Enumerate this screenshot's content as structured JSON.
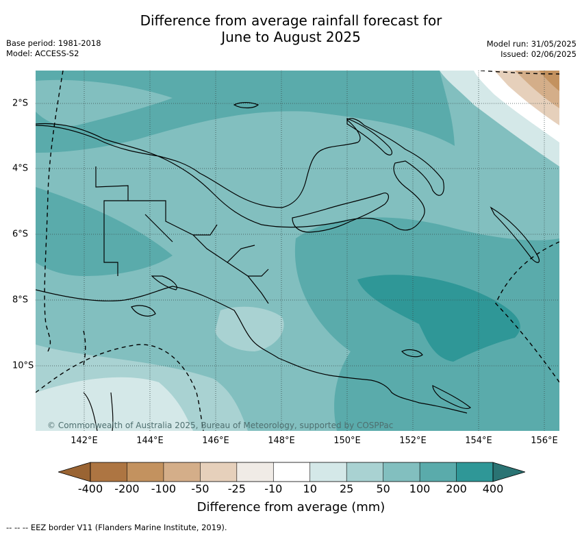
{
  "title_line1": "Difference from average rainfall forecast for",
  "title_line2": "June to August 2025",
  "meta_left": [
    "Base period: 1981-2018",
    "Model: ACCESS-S2"
  ],
  "meta_right": [
    "Model run: 31/05/2025",
    "Issued: 02/06/2025"
  ],
  "copyright": "© Commonwealth of Australia 2025, Bureau of Meteorology, supported by COSPPac",
  "x_ticks": [
    "142°E",
    "144°E",
    "146°E",
    "148°E",
    "150°E",
    "152°E",
    "154°E",
    "156°E"
  ],
  "y_ticks": [
    "2°S",
    "4°S",
    "6°S",
    "8°S",
    "10°S"
  ],
  "colorbar": {
    "title": "Difference from average (mm)",
    "labels": [
      "-400",
      "-200",
      "-100",
      "-50",
      "-25",
      "-10",
      "10",
      "25",
      "50",
      "100",
      "200",
      "400"
    ],
    "colors": [
      "#9a6433",
      "#ad7542",
      "#c3925f",
      "#d4ae89",
      "#e6d0bb",
      "#f0ebe6",
      "#ffffff",
      "#d4e8e8",
      "#a9d2d2",
      "#82bfbf",
      "#5aabab",
      "#2f9797",
      "#2a7373"
    ]
  },
  "footnote": "-- -- -- EEZ border V11 (Flanders Marine Institute, 2019)."
}
